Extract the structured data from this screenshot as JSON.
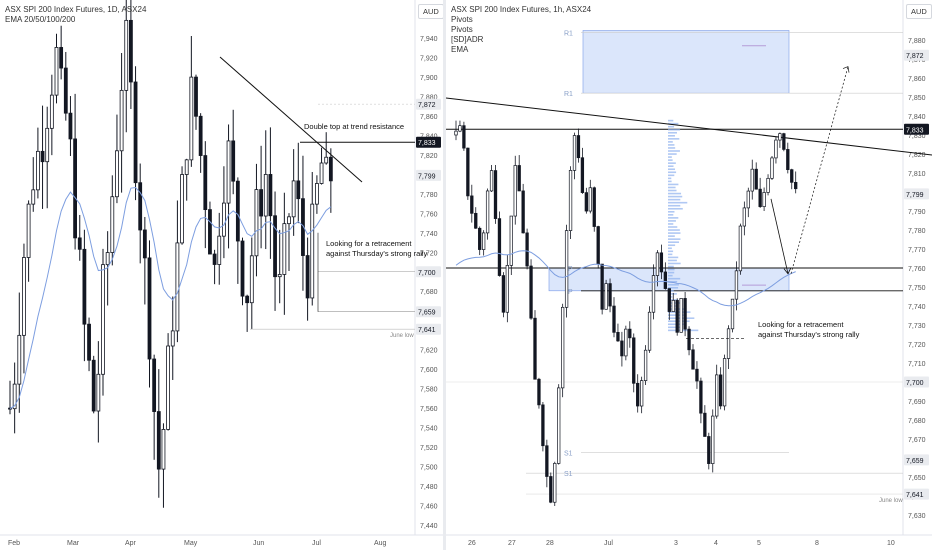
{
  "left": {
    "title": "ASX SPI 200 Index Futures, 1D, ASX24",
    "indicator": "EMA 20/50/100/200",
    "currency": "AUD",
    "price_ticks": [
      "7,940",
      "7,920",
      "7,900",
      "7,880",
      "7,860",
      "7,840",
      "7,820",
      "7,800",
      "7,780",
      "7,760",
      "7,740",
      "7,720",
      "7,700",
      "7,680",
      "7,660",
      "7,640",
      "7,620",
      "7,600",
      "7,580",
      "7,560",
      "7,540",
      "7,520",
      "7,500",
      "7,480",
      "7,460",
      "7,440"
    ],
    "time_ticks": [
      "Feb",
      "Mar",
      "Apr",
      "May",
      "Jun",
      "Jul",
      "Aug"
    ],
    "tags": [
      "7,872",
      "7,833",
      "7,799",
      "7,700",
      "7,659",
      "7,641"
    ],
    "annotation_top": "Double top at trend resistance",
    "annotation_mid_1": "Looking for a retracement",
    "annotation_mid_2": "against Thursday's strong rally",
    "june_low": "June low"
  },
  "right": {
    "title": "ASX SPI 200 Index Futures, 1h, ASX24",
    "indicators": [
      "Pivots",
      "Pivots",
      "[SD]ADR",
      "EMA"
    ],
    "currency": "AUD",
    "price_ticks": [
      "7,880",
      "7,870",
      "7,860",
      "7,850",
      "7,840",
      "7,830",
      "7,820",
      "7,810",
      "7,800",
      "7,790",
      "7,780",
      "7,770",
      "7,760",
      "7,750",
      "7,740",
      "7,730",
      "7,720",
      "7,710",
      "7,700",
      "7,690",
      "7,680",
      "7,670",
      "7,660",
      "7,650",
      "7,640",
      "7,630"
    ],
    "time_ticks": [
      "26",
      "27",
      "28",
      "Jul",
      "3",
      "4",
      "5",
      "8",
      "10"
    ],
    "tags": [
      "7,872",
      "7,833",
      "7,799",
      "7,700",
      "7,659",
      "7,641"
    ],
    "pivot_labels": [
      "R1",
      "R1",
      "P",
      "P",
      "S1",
      "S1"
    ],
    "annotation_1": "Looking for a retracement",
    "annotation_2": "against Thursday's strong rally",
    "june_low": "June low"
  },
  "colors": {
    "candle": "#131722",
    "ema": "#7d9ee0",
    "zone": "#dbe6fb",
    "zone_border": "#7a9be8",
    "tag_dark": "#131722"
  }
}
